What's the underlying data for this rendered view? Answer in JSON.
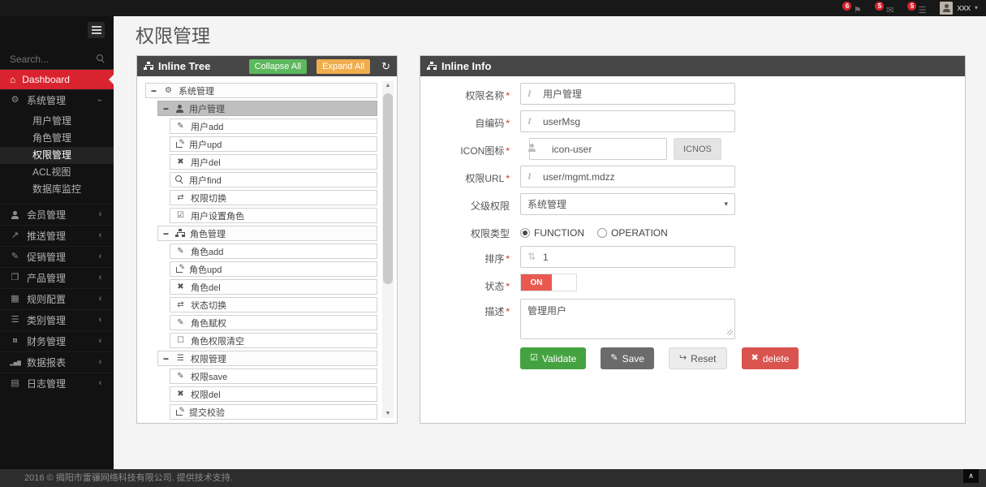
{
  "navbar": {
    "badges": [
      {
        "icon": "flag-icon",
        "count": "6"
      },
      {
        "icon": "envelope-icon",
        "count": "5"
      },
      {
        "icon": "tasks-icon",
        "count": "5"
      }
    ],
    "username": "xxx"
  },
  "sidebar": {
    "search_placeholder": "Search...",
    "dashboard_label": "Dashboard",
    "system_label": "系统管理",
    "system_children": [
      "用户管理",
      "角色管理",
      "权限管理",
      "ACL视图",
      "数据库监控"
    ],
    "active_item": "权限管理",
    "groups": [
      {
        "label": "会员管理",
        "icon": "person-icon"
      },
      {
        "label": "推送管理",
        "icon": "share-icon"
      },
      {
        "label": "促销管理",
        "icon": "pencil-icon"
      },
      {
        "label": "产品管理",
        "icon": "product-icon"
      },
      {
        "label": "规则配置",
        "icon": "table-icon"
      },
      {
        "label": "类别管理",
        "icon": "list-icon"
      },
      {
        "label": "财务管理",
        "icon": "finance-icon"
      },
      {
        "label": "数据报表",
        "icon": "chart-icon"
      },
      {
        "label": "日志管理",
        "icon": "file-icon"
      }
    ]
  },
  "page": {
    "title": "权限管理"
  },
  "tree": {
    "title": "Inline Tree",
    "collapse_all": "Collapse All",
    "expand_all": "Expand All",
    "selected_node": "用户管理",
    "nodes": [
      {
        "level": 0,
        "icon": "gears-icon",
        "label": "系统管理"
      },
      {
        "level": 1,
        "icon": "person-icon",
        "label": "用户管理"
      },
      {
        "level": 2,
        "icon": "pencil-icon",
        "label": "用户add"
      },
      {
        "level": 2,
        "icon": "edit-square-icon",
        "label": "用户upd"
      },
      {
        "level": 2,
        "icon": "x-icon",
        "label": "用户del"
      },
      {
        "level": 2,
        "icon": "search-icon",
        "label": "用户find"
      },
      {
        "level": 2,
        "icon": "retweet-icon",
        "label": "权限切换"
      },
      {
        "level": 2,
        "icon": "check-square-icon",
        "label": "用户设置角色"
      },
      {
        "level": 1,
        "icon": "sitemap-icon",
        "label": "角色管理"
      },
      {
        "level": 2,
        "icon": "pencil-icon",
        "label": "角色add"
      },
      {
        "level": 2,
        "icon": "edit-square-icon",
        "label": "角色upd"
      },
      {
        "level": 2,
        "icon": "x-icon",
        "label": "角色del"
      },
      {
        "level": 2,
        "icon": "retweet-icon",
        "label": "状态切换"
      },
      {
        "level": 2,
        "icon": "pencil-icon",
        "label": "角色赋权"
      },
      {
        "level": 2,
        "icon": "square-icon",
        "label": "角色权限清空"
      },
      {
        "level": 1,
        "icon": "list-icon",
        "label": "权限管理"
      },
      {
        "level": 2,
        "icon": "pencil-icon",
        "label": "权限save"
      },
      {
        "level": 2,
        "icon": "x-icon",
        "label": "权限del"
      },
      {
        "level": 2,
        "icon": "check-square-icon",
        "label": "提交校验"
      }
    ]
  },
  "form": {
    "title": "Inline Info",
    "fields": {
      "name": {
        "label": "权限名称",
        "value": "用户管理"
      },
      "code": {
        "label": "自编码",
        "value": "userMsg"
      },
      "icon": {
        "label": "ICON图标",
        "value": "icon-user",
        "button_label": "ICNOS"
      },
      "url": {
        "label": "权限URL",
        "value": "user/mgmt.mdzz"
      },
      "parent": {
        "label": "父级权限",
        "value": "系统管理"
      },
      "type": {
        "label": "权限类型",
        "options": [
          "FUNCTION",
          "OPERATION"
        ],
        "selected": "FUNCTION"
      },
      "sort": {
        "label": "排序",
        "value": "1"
      },
      "status": {
        "label": "状态",
        "value": "ON"
      },
      "desc": {
        "label": "描述",
        "value": "管理用户"
      }
    },
    "buttons": {
      "validate": "Validate",
      "save": "Save",
      "reset": "Reset",
      "delete": "delete"
    }
  },
  "footer": {
    "text": "2016 © 揭阳市雷骧网络科技有限公司. 提供技术支持."
  }
}
